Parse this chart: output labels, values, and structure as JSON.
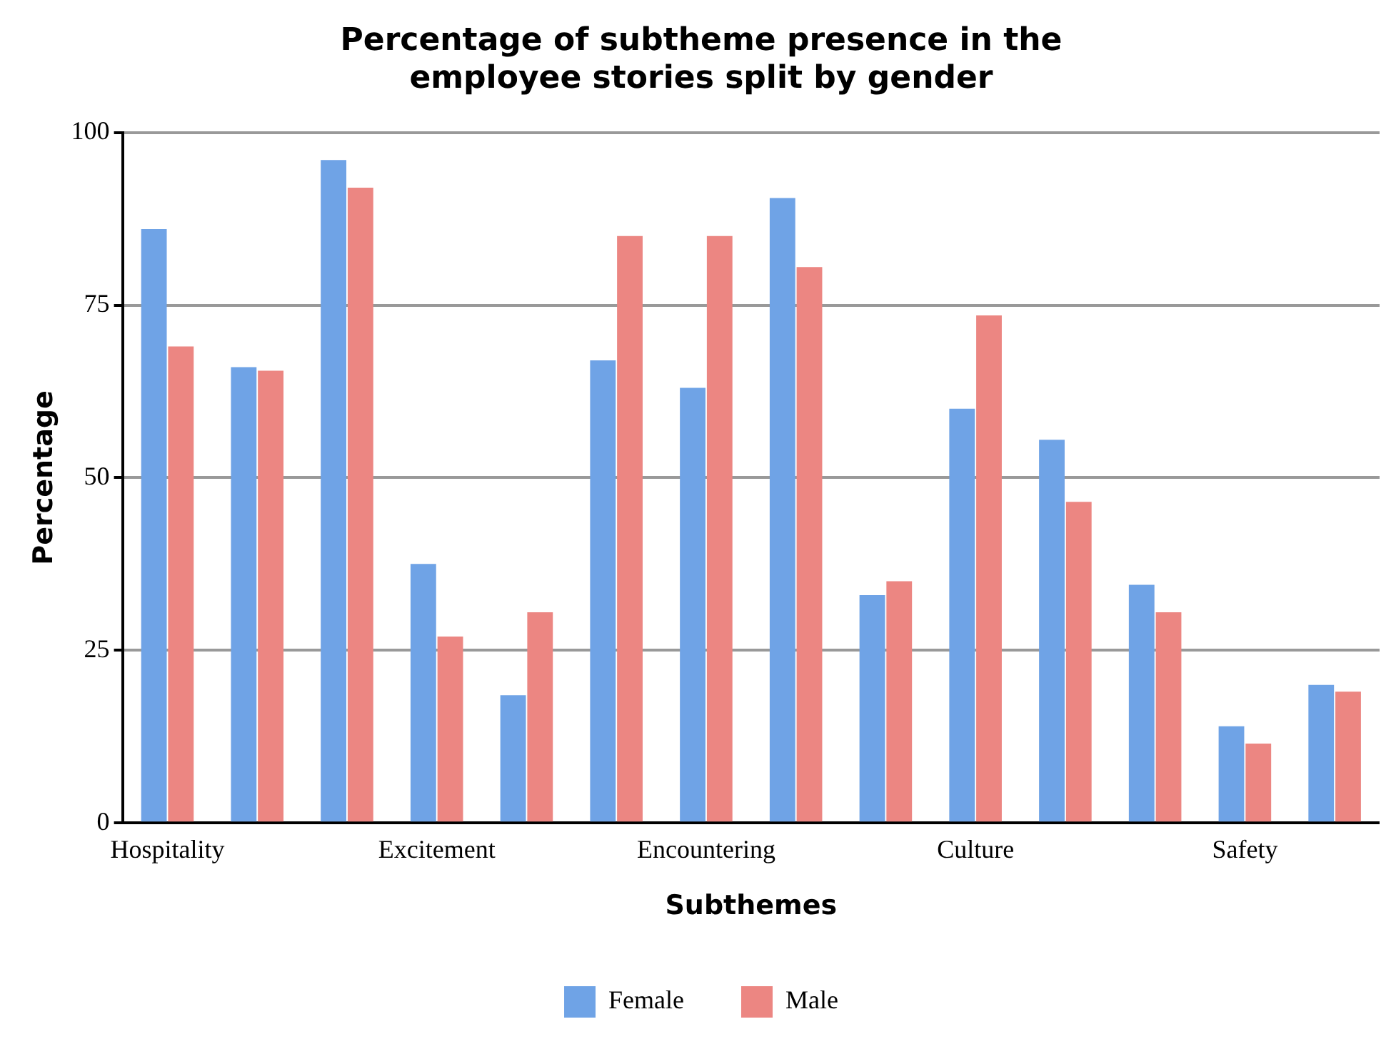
{
  "chart_data": {
    "type": "bar",
    "title": "Percentage of subtheme presence in the employee stories split by gender",
    "xlabel": "Subthemes",
    "ylabel": "Percentage",
    "categories": [
      "Hospitality",
      null,
      null,
      "Excitement",
      null,
      null,
      "Encountering",
      null,
      null,
      "Culture",
      null,
      null,
      "Safety",
      null
    ],
    "series": [
      {
        "name": "Female",
        "color": "#6fa3e6",
        "values": [
          86,
          66,
          96,
          37.5,
          18.5,
          67,
          63,
          90.5,
          33,
          60,
          55.5,
          34.5,
          14,
          20
        ]
      },
      {
        "name": "Male",
        "color": "#ec8682",
        "values": [
          69,
          65.5,
          92,
          27,
          30.5,
          85,
          85,
          80.5,
          35,
          73.5,
          46.5,
          30.5,
          11.5,
          19
        ]
      }
    ],
    "ylim": [
      0,
      100
    ],
    "yticks": [
      0,
      25,
      50,
      75,
      100
    ],
    "grid": "y",
    "legend": "bottom"
  }
}
